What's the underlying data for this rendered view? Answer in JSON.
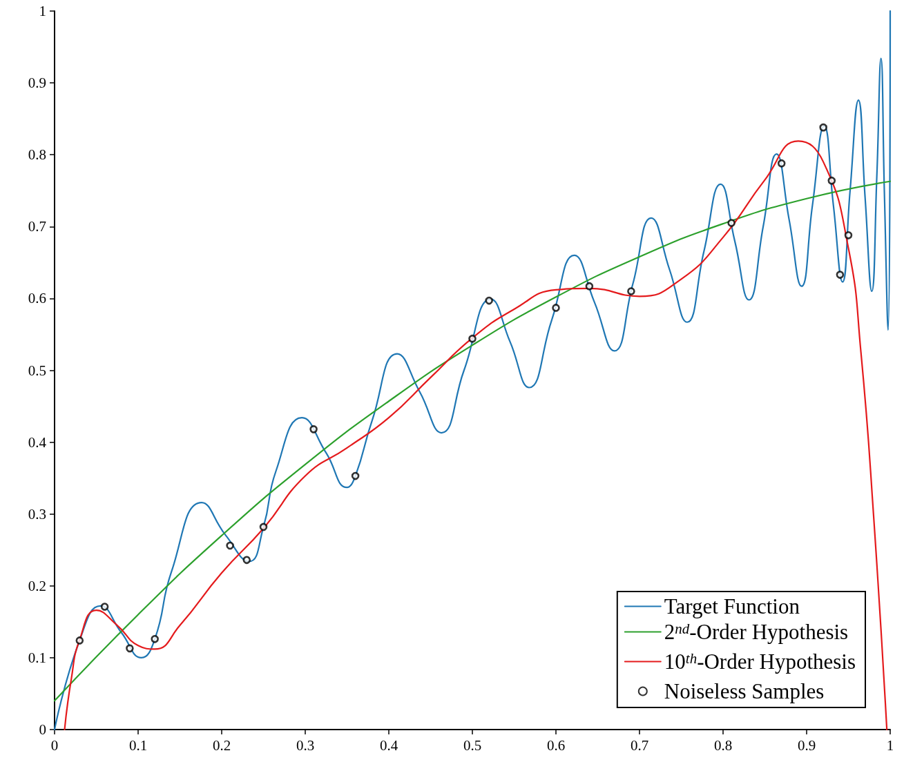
{
  "chart_data": {
    "type": "line",
    "xlim": [
      0,
      1
    ],
    "ylim": [
      0,
      1
    ],
    "xticks": [
      0,
      0.1,
      0.2,
      0.3,
      0.4,
      0.5,
      0.6,
      0.7,
      0.8,
      0.9,
      1
    ],
    "yticks": [
      0,
      0.1,
      0.2,
      0.3,
      0.4,
      0.5,
      0.6,
      0.7,
      0.8,
      0.9,
      1
    ],
    "grid": false,
    "legend": "bottom right",
    "line_style": "solid",
    "series": [
      {
        "name": "Target Function",
        "marker": "none",
        "color": "#1f77b4",
        "x": [
          0,
          0.03,
          0.055,
          0.08,
          0.104,
          0.12,
          0.14,
          0.176,
          0.205,
          0.233,
          0.25,
          0.265,
          0.296,
          0.325,
          0.35,
          0.36,
          0.38,
          0.41,
          0.437,
          0.463,
          0.49,
          0.522,
          0.545,
          0.568,
          0.595,
          0.622,
          0.646,
          0.67,
          0.692,
          0.714,
          0.736,
          0.757,
          0.777,
          0.797,
          0.814,
          0.831,
          0.848,
          0.864,
          0.879,
          0.894,
          0.907,
          0.921,
          0.932,
          0.943,
          0.952,
          0.962,
          0.97,
          0.978,
          0.984,
          0.989,
          0.993,
          0.9975,
          1
        ],
        "values": [
          0,
          0.124,
          0.172,
          0.135,
          0.1,
          0.126,
          0.22,
          0.316,
          0.27,
          0.234,
          0.282,
          0.36,
          0.434,
          0.385,
          0.337,
          0.353,
          0.43,
          0.523,
          0.47,
          0.413,
          0.5,
          0.599,
          0.54,
          0.476,
          0.57,
          0.66,
          0.595,
          0.527,
          0.62,
          0.712,
          0.64,
          0.567,
          0.665,
          0.759,
          0.68,
          0.598,
          0.7,
          0.801,
          0.71,
          0.617,
          0.73,
          0.84,
          0.73,
          0.623,
          0.75,
          0.876,
          0.74,
          0.61,
          0.77,
          0.934,
          0.75,
          0.556,
          1
        ]
      },
      {
        "name": "2$^{nd}$-Order Hypothesis",
        "marker": "none",
        "color": "#2ca02c",
        "x": [
          0,
          0.1,
          0.2,
          0.3,
          0.4,
          0.5,
          0.6,
          0.7,
          0.8,
          0.9,
          1
        ],
        "values": [
          0.04,
          0.16,
          0.27,
          0.369,
          0.457,
          0.535,
          0.602,
          0.658,
          0.704,
          0.739,
          0.763
        ]
      },
      {
        "name": "10$^{th}$-Order Hypothesis",
        "marker": "none",
        "color": "#e41a1c",
        "x": [
          0.012,
          0.02,
          0.03,
          0.05,
          0.075,
          0.1,
          0.12,
          0.15,
          0.2,
          0.25,
          0.3,
          0.35,
          0.4,
          0.45,
          0.5,
          0.55,
          0.6,
          0.64,
          0.7,
          0.75,
          0.8,
          0.85,
          0.89,
          0.92,
          0.95,
          0.965,
          0.98,
          0.996
        ],
        "values": [
          0,
          0.07,
          0.125,
          0.166,
          0.145,
          0.117,
          0.112,
          0.145,
          0.218,
          0.28,
          0.353,
          0.392,
          0.434,
          0.49,
          0.545,
          0.585,
          0.612,
          0.614,
          0.603,
          0.627,
          0.685,
          0.765,
          0.819,
          0.79,
          0.67,
          0.525,
          0.3,
          0
        ]
      },
      {
        "name": "Noiseless Samples",
        "type": "scatter",
        "marker": "circle",
        "color": "#000000",
        "x": [
          0.03,
          0.06,
          0.09,
          0.12,
          0.21,
          0.23,
          0.25,
          0.31,
          0.36,
          0.5,
          0.52,
          0.6,
          0.64,
          0.69,
          0.81,
          0.87,
          0.92,
          0.93,
          0.94,
          0.95
        ],
        "values": [
          0.124,
          0.171,
          0.113,
          0.126,
          0.256,
          0.236,
          0.282,
          0.418,
          0.353,
          0.544,
          0.597,
          0.587,
          0.617,
          0.61,
          0.705,
          0.788,
          0.838,
          0.764,
          0.633,
          0.688
        ]
      }
    ]
  }
}
